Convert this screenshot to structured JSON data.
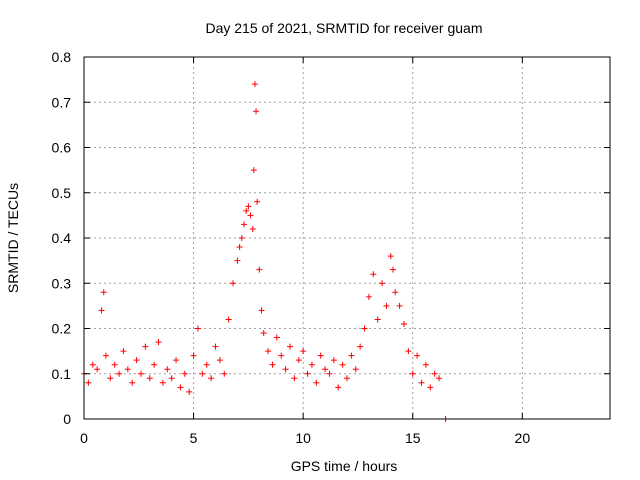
{
  "chart_data": {
    "type": "scatter",
    "title": "Day 215 of 2021, SRMTID for receiver guam",
    "xlabel": "GPS time / hours",
    "ylabel": "SRMTID / TECUs",
    "xlim": [
      0,
      24
    ],
    "ylim": [
      0,
      0.8
    ],
    "xticks": [
      0,
      5,
      10,
      15,
      20
    ],
    "yticks": [
      0,
      0.1,
      0.2,
      0.3,
      0.4,
      0.5,
      0.6,
      0.7,
      0.8
    ],
    "xtick_labels": [
      "0",
      "5",
      "10",
      "15",
      "20"
    ],
    "ytick_labels": [
      "0",
      "0.1",
      "0.2",
      "0.3",
      "0.4",
      "0.5",
      "0.6",
      "0.7",
      "0.8"
    ],
    "grid": true,
    "marker": "+",
    "color": "#ff0000",
    "series": [
      {
        "name": "SRMTID",
        "x": [
          0.0,
          0.2,
          0.4,
          0.6,
          0.8,
          0.9,
          1.0,
          1.2,
          1.4,
          1.6,
          1.8,
          2.0,
          2.2,
          2.4,
          2.6,
          2.8,
          3.0,
          3.2,
          3.4,
          3.6,
          3.8,
          4.0,
          4.2,
          4.4,
          4.6,
          4.8,
          5.0,
          5.2,
          5.4,
          5.6,
          5.8,
          6.0,
          6.2,
          6.4,
          6.6,
          6.8,
          7.0,
          7.1,
          7.2,
          7.3,
          7.4,
          7.5,
          7.6,
          7.7,
          7.75,
          7.8,
          7.85,
          7.9,
          8.0,
          8.1,
          8.2,
          8.4,
          8.6,
          8.8,
          9.0,
          9.2,
          9.4,
          9.6,
          9.8,
          10.0,
          10.2,
          10.4,
          10.6,
          10.8,
          11.0,
          11.2,
          11.4,
          11.6,
          11.8,
          12.0,
          12.2,
          12.4,
          12.6,
          12.8,
          13.0,
          13.2,
          13.4,
          13.6,
          13.8,
          14.0,
          14.1,
          14.2,
          14.4,
          14.6,
          14.8,
          15.0,
          15.2,
          15.4,
          15.6,
          15.8,
          16.0,
          16.2,
          16.5
        ],
        "y": [
          0.1,
          0.08,
          0.12,
          0.11,
          0.24,
          0.28,
          0.14,
          0.09,
          0.12,
          0.1,
          0.15,
          0.11,
          0.08,
          0.13,
          0.1,
          0.16,
          0.09,
          0.12,
          0.17,
          0.08,
          0.11,
          0.09,
          0.13,
          0.07,
          0.1,
          0.06,
          0.14,
          0.2,
          0.1,
          0.12,
          0.09,
          0.16,
          0.13,
          0.1,
          0.22,
          0.3,
          0.35,
          0.38,
          0.4,
          0.43,
          0.46,
          0.47,
          0.45,
          0.42,
          0.55,
          0.74,
          0.68,
          0.48,
          0.33,
          0.24,
          0.19,
          0.15,
          0.12,
          0.18,
          0.14,
          0.11,
          0.16,
          0.09,
          0.13,
          0.15,
          0.1,
          0.12,
          0.08,
          0.14,
          0.11,
          0.1,
          0.13,
          0.07,
          0.12,
          0.09,
          0.14,
          0.11,
          0.16,
          0.2,
          0.27,
          0.32,
          0.22,
          0.3,
          0.25,
          0.36,
          0.33,
          0.28,
          0.25,
          0.21,
          0.15,
          0.1,
          0.14,
          0.08,
          0.12,
          0.07,
          0.1,
          0.09,
          0.0
        ]
      }
    ]
  }
}
